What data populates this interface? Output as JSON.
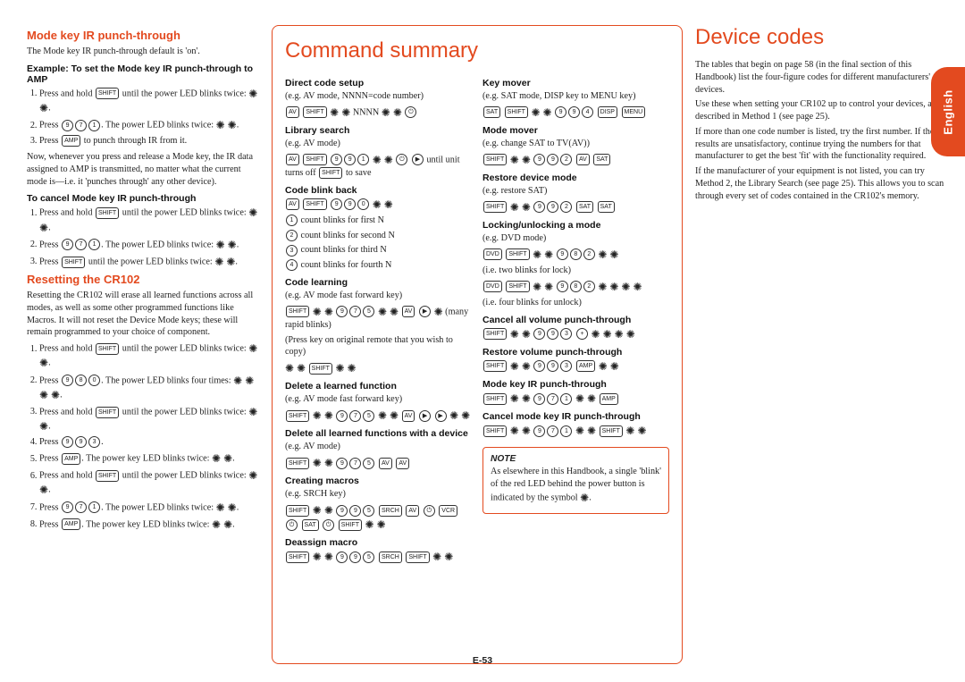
{
  "col1": {
    "h2a": "Mode key IR punch-through",
    "p1": "The Mode key IR punch-through default is 'on'.",
    "h3a": "Example: To set the Mode key IR punch-through to AMP",
    "li1a": "Press and hold SHIFT until the power LED blinks twice: * *.",
    "li1b": "Press 9 7 1. The power LED blinks twice: * *.",
    "li1c": "Press AMP to punch through IR from it.",
    "p2": "Now, whenever you press and release a Mode key, the IR data assigned to AMP is transmitted, no matter what the current mode is—i.e. it 'punches through' any other device).",
    "h3b": "To cancel Mode key IR punch-through",
    "li2a": "Press and hold SHIFT until the power LED blinks twice: * *.",
    "li2b": "Press 9 7 1. The power LED blinks twice: * *.",
    "li2c": "Press SHIFT until the power LED blinks twice: * *.",
    "h2b": "Resetting the CR102",
    "p3": "Resetting the CR102 will erase all learned functions across all modes, as well as some other programmed functions like Macros. It will not reset the Device Mode keys; these will remain programmed to your choice of component.",
    "li3a": "Press and hold SHIFT until the power LED blinks twice: * *.",
    "li3b": "Press 9 8 0. The power LED blinks four times: * * * *.",
    "li3c": "Press and hold SHIFT until the power LED blinks twice: * *.",
    "li3d": "Press 9 9 3.",
    "li3e": "Press AMP. The power key LED blinks twice: * *.",
    "li3f": "Press and hold SHIFT until the power LED blinks twice: * *.",
    "li3g": "Press 9 7 1. The power LED blinks twice: * *.",
    "li3h": "Press AMP. The power key LED blinks twice: * *."
  },
  "box": {
    "title": "Command summary",
    "left": {
      "h3a": "Direct code setup",
      "pa": "(e.g. AV mode, NNNN=code number)",
      "h3b": "Library search",
      "pb": "(e.g. AV mode)",
      "h3c": "Code blink back",
      "pc1": "count blinks for first N",
      "pc2": "count blinks for second N",
      "pc3": "count blinks for third N",
      "pc4": "count blinks for fourth N",
      "h3d": "Code learning",
      "pd": "(e.g. AV mode fast forward key)",
      "pd2": "(Press key on original remote that you wish to copy)",
      "h3e": "Delete a learned function",
      "pe": "(e.g. AV mode fast forward key)",
      "h3f": "Delete all learned functions with a device",
      "pf": "(e.g. AV mode)",
      "h3g": "Creating macros",
      "pg": "(e.g. SRCH key)",
      "h3h": "Deassign macro"
    },
    "right": {
      "h3a": "Key mover",
      "pa": "(e.g. SAT mode, DISP key to MENU key)",
      "h3b": "Mode mover",
      "pb": "(e.g. change SAT to TV(AV))",
      "h3c": "Restore device mode",
      "pc": "(e.g. restore SAT)",
      "h3d": "Locking/unlocking a mode",
      "pd": "(e.g. DVD mode)",
      "pd2": "(i.e. two blinks for lock)",
      "pd3": "(i.e. four blinks for unlock)",
      "h3e": "Cancel all volume punch-through",
      "h3f": "Restore volume punch-through",
      "h3g": "Mode key IR punch-through",
      "h3h": "Cancel mode key IR punch-through",
      "note_hdr": "NOTE",
      "note": "As elsewhere in this Handbook, a single 'blink' of the red LED behind the power button is indicated by the symbol *."
    }
  },
  "col3": {
    "title": "Device codes",
    "p1": "The tables that begin on page 58 (in the final section of this Handbook) list the four-figure codes for different manufacturers' devices.",
    "p2": "Use these when setting your CR102 up to control your devices, as described in Method 1 (see page 25).",
    "p3": "If more than one code number is listed, try the first number. If the results are unsatisfactory, continue trying the numbers for that manufacturer to get the best 'fit' with the functionality required.",
    "p4": "If the manufacturer of your equipment is not listed, you can try Method 2, the Library Search (see page 25). This allows you to scan through every set of codes contained in the CR102's memory."
  },
  "pageno": "E-53",
  "tab": "English"
}
